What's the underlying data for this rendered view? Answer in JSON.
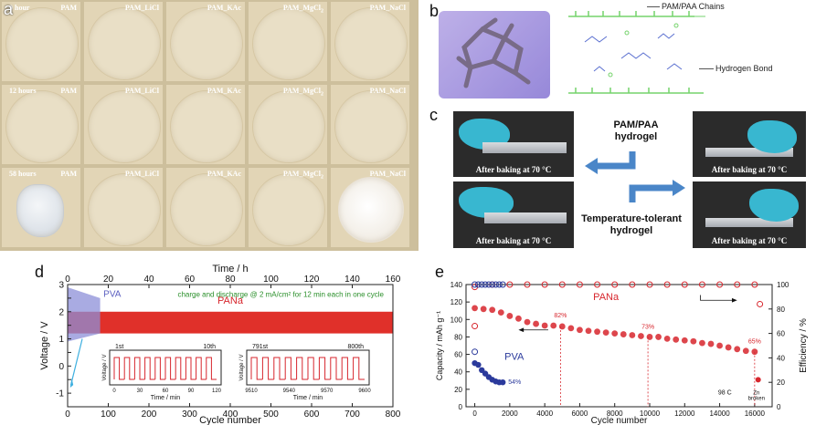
{
  "panel_letters": {
    "a": "a",
    "b": "b",
    "c": "c",
    "d": "d",
    "e": "e"
  },
  "panel_a": {
    "rows": [
      {
        "time": "0 hour",
        "labels": [
          "PAM",
          "PAM_LiCl",
          "PAM_KAc",
          "PAM_MgCl",
          "PAM_NaCl"
        ]
      },
      {
        "time": "12 hours",
        "labels": [
          "PAM",
          "PAM_LiCl",
          "PAM_KAc",
          "PAM_MgCl",
          "PAM_NaCl"
        ]
      },
      {
        "time": "58 hours",
        "labels": [
          "PAM",
          "PAM_LiCl",
          "PAM_KAc",
          "PAM_MgCl",
          "PAM_NaCl"
        ]
      }
    ],
    "subscript": "2"
  },
  "panel_b": {
    "legend_chains": "PAM/PAA Chains",
    "legend_hbond": "Hydrogen Bond"
  },
  "panel_c": {
    "caption": "After baking at 70 °C",
    "label_top": [
      "PAM/PAA",
      "hydrogel"
    ],
    "label_bottom": [
      "Temperature-tolerant",
      "hydrogel"
    ]
  },
  "panel_d": {
    "top_axis_label": "Time / h",
    "xlabel": "Cycle number",
    "ylabel": "Voltage / V",
    "note": "charge and discharge @ 2 mA/cm² for 12 min each in one cycle",
    "series_pva": "PVA",
    "series_pana": "PANa",
    "inset1": {
      "start": "1st",
      "end": "10th",
      "xlabel": "Time / min",
      "ylabel": "Voltage / V",
      "xticks": [
        "0",
        "30",
        "60",
        "90",
        "120"
      ]
    },
    "inset2": {
      "start": "791st",
      "end": "800th",
      "xlabel": "Time / min",
      "ylabel": "Voltage / V",
      "xticks": [
        "9510",
        "9540",
        "9570",
        "9600"
      ]
    }
  },
  "panel_e": {
    "xlabel": "Cycle number",
    "ylabel_left": "Capacity / mAh g⁻¹",
    "ylabel_right": "Efficiency / %",
    "series_pana": "PANa",
    "series_pva": "PVA",
    "annotations": [
      "82%",
      "73%",
      "65%",
      "54%"
    ],
    "temp_label": "98 C",
    "zn_label": [
      "Zn",
      "broken"
    ]
  },
  "chart_data": [
    {
      "type": "line",
      "title": "",
      "xlabel": "Cycle number",
      "ylabel": "Voltage / V",
      "x2label": "Time / h",
      "xlim": [
        0,
        800
      ],
      "ylim": [
        -1.5,
        3
      ],
      "x2lim": [
        0,
        160
      ],
      "xticks": [
        0,
        100,
        200,
        300,
        400,
        500,
        600,
        700,
        800
      ],
      "x2ticks": [
        0,
        20,
        40,
        60,
        80,
        100,
        120,
        140,
        160
      ],
      "yticks": [
        -1,
        -0.5,
        0,
        0.5,
        1,
        1.5,
        2,
        2.5,
        3
      ],
      "series": [
        {
          "name": "PVA",
          "x_range": [
            0,
            80
          ],
          "voltage_band": [
            1.2,
            2.5
          ],
          "color": "#8c8fd8"
        },
        {
          "name": "PANa",
          "x_range": [
            0,
            800
          ],
          "voltage_band": [
            1.2,
            2.0
          ],
          "color": "#e0302a"
        }
      ]
    },
    {
      "type": "scatter",
      "title": "",
      "xlabel": "Cycle number",
      "ylabel": "Capacity / mAh g⁻¹",
      "y2label": "Efficiency / %",
      "xlim": [
        -500,
        17000
      ],
      "ylim": [
        0,
        140
      ],
      "y2lim": [
        0,
        100
      ],
      "xticks": [
        0,
        2000,
        4000,
        6000,
        8000,
        10000,
        12000,
        14000,
        16000
      ],
      "yticks": [
        0,
        20,
        40,
        60,
        80,
        100,
        120,
        140
      ],
      "y2ticks": [
        0,
        20,
        40,
        60,
        80,
        100
      ],
      "series": [
        {
          "name": "PANa capacity",
          "color": "#d7262d",
          "x": [
            0,
            500,
            1000,
            1500,
            2000,
            2500,
            3000,
            3500,
            4000,
            4500,
            5000,
            5500,
            6000,
            6500,
            7000,
            7500,
            8000,
            8500,
            9000,
            9500,
            10000,
            10500,
            11000,
            11500,
            12000,
            12500,
            13000,
            13500,
            14000,
            14500,
            15000,
            15500,
            16000
          ],
          "y": [
            113,
            112,
            111,
            108,
            104,
            101,
            97,
            95,
            93,
            93,
            92,
            90,
            88,
            87,
            86,
            85,
            84,
            83,
            82,
            81,
            80,
            80,
            78,
            77,
            76,
            75,
            73,
            72,
            70,
            68,
            66,
            64,
            63
          ]
        },
        {
          "name": "PANa efficiency",
          "color": "#d7262d",
          "x": [
            0,
            1000,
            2000,
            3000,
            4000,
            5000,
            6000,
            7000,
            8000,
            9000,
            10000,
            11000,
            12000,
            13000,
            14000,
            15000,
            16000
          ],
          "y": [
            98,
            100,
            100,
            100,
            100,
            100,
            100,
            100,
            100,
            100,
            100,
            100,
            100,
            100,
            100,
            100,
            100
          ]
        },
        {
          "name": "PVA capacity",
          "color": "#2b3a9c",
          "x": [
            0,
            200,
            400,
            600,
            800,
            1000,
            1200,
            1400,
            1600
          ],
          "y": [
            50,
            48,
            42,
            38,
            34,
            31,
            29,
            28,
            28
          ]
        },
        {
          "name": "PVA efficiency",
          "color": "#2b3a9c",
          "x": [
            0,
            200,
            400,
            600,
            800,
            1000,
            1200,
            1400,
            1600
          ],
          "y": [
            100,
            100,
            100,
            100,
            100,
            100,
            100,
            100,
            100
          ]
        }
      ],
      "points": [
        {
          "x": 4900,
          "y": 93,
          "label": "82%"
        },
        {
          "x": 9900,
          "y": 80,
          "label": "73%"
        },
        {
          "x": 16000,
          "y": 63,
          "label": "65%"
        },
        {
          "x": 1600,
          "y": 28,
          "label": "54%"
        }
      ]
    }
  ]
}
